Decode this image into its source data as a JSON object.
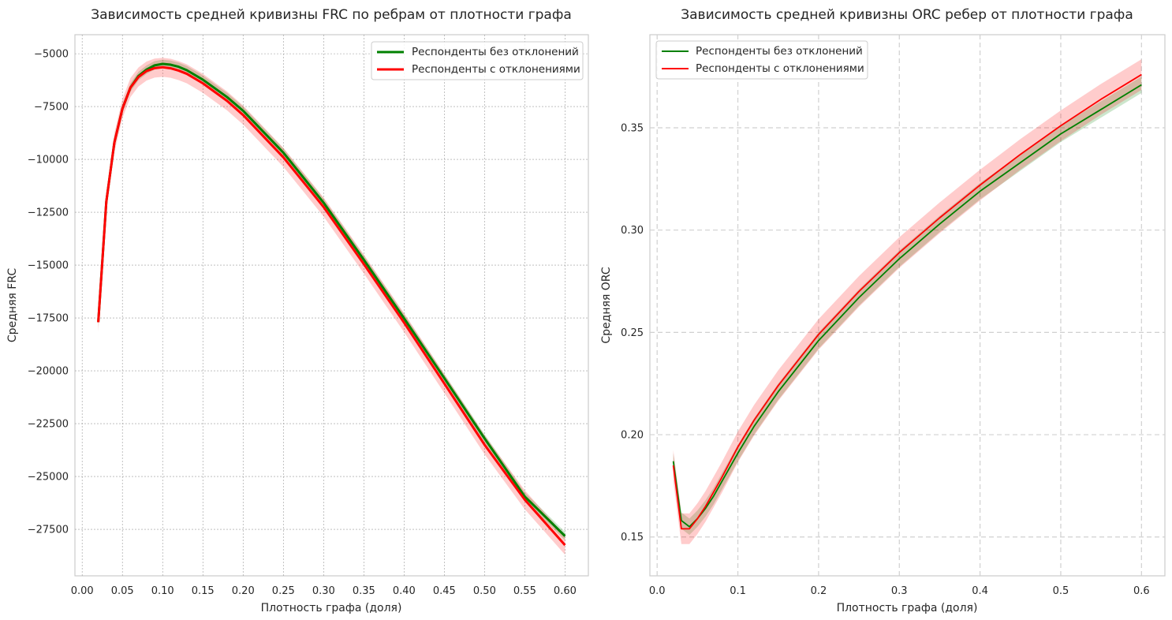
{
  "chart_data": [
    {
      "type": "line",
      "title": "Зависимость средней кривизны FRC по ребрам от плотности графа",
      "xlabel": "Плотность графа (доля)",
      "ylabel": "Средняя FRC",
      "xlim": [
        -0.009,
        0.629
      ],
      "ylim": [
        -29700,
        -4100
      ],
      "xticks": [
        0.0,
        0.05,
        0.1,
        0.15,
        0.2,
        0.25,
        0.3,
        0.35,
        0.4,
        0.45,
        0.5,
        0.55,
        0.6
      ],
      "xtick_labels": [
        "0.00",
        "0.05",
        "0.10",
        "0.15",
        "0.20",
        "0.25",
        "0.30",
        "0.35",
        "0.40",
        "0.45",
        "0.50",
        "0.55",
        "0.60"
      ],
      "yticks": [
        -5000,
        -7500,
        -10000,
        -12500,
        -15000,
        -17500,
        -20000,
        -22500,
        -25000,
        -27500
      ],
      "ytick_labels": [
        "−5000",
        "−7500",
        "−10000",
        "−12500",
        "−15000",
        "−17500",
        "−20000",
        "−22500",
        "−25000",
        "−27500"
      ],
      "grid": "dotted",
      "legend_position": "top-right",
      "x": [
        0.02,
        0.03,
        0.04,
        0.05,
        0.06,
        0.07,
        0.08,
        0.09,
        0.1,
        0.11,
        0.12,
        0.13,
        0.15,
        0.18,
        0.2,
        0.25,
        0.3,
        0.35,
        0.4,
        0.45,
        0.5,
        0.55,
        0.6
      ],
      "series": [
        {
          "name": "Респонденты без отклонений",
          "color": "#008000",
          "values": [
            -17700,
            -12000,
            -9200,
            -7600,
            -6600,
            -6050,
            -5750,
            -5550,
            -5480,
            -5520,
            -5620,
            -5780,
            -6230,
            -7050,
            -7700,
            -9680,
            -12050,
            -14750,
            -17520,
            -20350,
            -23200,
            -25950,
            -27820
          ],
          "band": 200
        },
        {
          "name": "Респонденты с отклонениями",
          "color": "#ff0000",
          "values": [
            -17700,
            -12000,
            -9200,
            -7600,
            -6600,
            -6100,
            -5820,
            -5680,
            -5640,
            -5690,
            -5800,
            -5950,
            -6400,
            -7230,
            -7900,
            -9900,
            -12250,
            -14950,
            -17720,
            -20600,
            -23500,
            -26100,
            -28250
          ],
          "band": 450
        }
      ]
    },
    {
      "type": "line",
      "title": "Зависимость средней кривизны ORC ребер от плотности графа",
      "xlabel": "Плотность графа (доля)",
      "ylabel": "Средняя ORC",
      "xlim": [
        -0.009,
        0.629
      ],
      "ylim": [
        0.131,
        0.3955
      ],
      "xticks": [
        0.0,
        0.1,
        0.2,
        0.3,
        0.4,
        0.5,
        0.6
      ],
      "xtick_labels": [
        "0.0",
        "0.1",
        "0.2",
        "0.3",
        "0.4",
        "0.5",
        "0.6"
      ],
      "yticks": [
        0.15,
        0.2,
        0.25,
        0.3,
        0.35
      ],
      "ytick_labels": [
        "0.15",
        "0.20",
        "0.25",
        "0.30",
        "0.35"
      ],
      "grid": "dashed",
      "legend_position": "top-left",
      "x": [
        0.02,
        0.03,
        0.04,
        0.05,
        0.06,
        0.07,
        0.08,
        0.1,
        0.12,
        0.15,
        0.2,
        0.25,
        0.3,
        0.35,
        0.4,
        0.45,
        0.5,
        0.55,
        0.6
      ],
      "series": [
        {
          "name": "Респонденты без отклонений",
          "color": "#008000",
          "values": [
            0.187,
            0.158,
            0.155,
            0.159,
            0.164,
            0.17,
            0.177,
            0.191,
            0.204,
            0.221,
            0.246,
            0.267,
            0.286,
            0.303,
            0.319,
            0.333,
            0.347,
            0.359,
            0.371
          ],
          "band": 0.004
        },
        {
          "name": "Респонденты с отклонениями",
          "color": "#ff0000",
          "values": [
            0.185,
            0.154,
            0.154,
            0.159,
            0.165,
            0.172,
            0.179,
            0.194,
            0.207,
            0.224,
            0.249,
            0.27,
            0.289,
            0.306,
            0.322,
            0.337,
            0.351,
            0.364,
            0.376
          ],
          "band": 0.0075
        }
      ]
    }
  ]
}
